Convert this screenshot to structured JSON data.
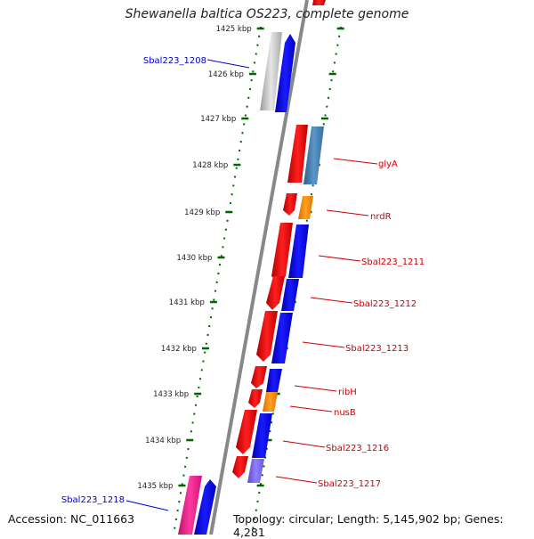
{
  "title": "Shewanella baltica OS223, complete genome",
  "footer": {
    "accession": "Accession: NC_011663",
    "summary": "Topology: circular; Length: 5,145,902 bp; Genes: 4,281"
  },
  "ticks": [
    "1425 kbp",
    "1426 kbp",
    "1427 kbp",
    "1428 kbp",
    "1429 kbp",
    "1430 kbp",
    "1431 kbp",
    "1432 kbp",
    "1433 kbp",
    "1434 kbp",
    "1435 kbp"
  ],
  "left_labels": [
    "Sbal223_1208",
    "Sbal223_1218"
  ],
  "right_labels": [
    "glyA",
    "nrdR",
    "Sbal223_1211",
    "Sbal223_1212",
    "Sbal223_1213",
    "ribH",
    "nusB",
    "Sbal223_1216",
    "Sbal223_1217"
  ],
  "colors": {
    "cds_red": "#ff0000",
    "gene_blue": "#0000ff",
    "gene_steelblue": "#4682b4",
    "gene_orange": "#ff8c00",
    "gene_purple": "#7b68ee",
    "gene_pink": "#ff1493",
    "gene_gray": "#c8c8c8",
    "backbone": "#888888",
    "tick_green": "#006400",
    "left_label": "#0000cc",
    "right_label": "#cc0000"
  }
}
